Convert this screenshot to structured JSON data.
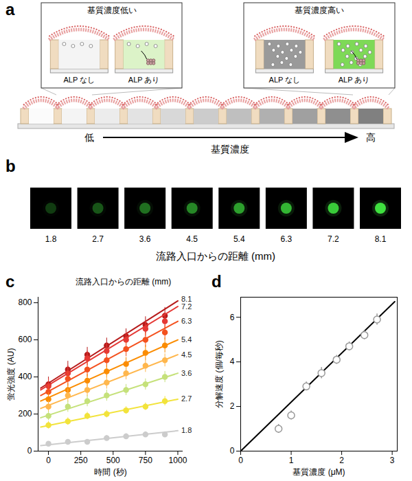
{
  "chart_data": [
    {
      "type": "line",
      "title": "c",
      "annotations": [
        "流路入口からの距離 (mm)"
      ],
      "xlabel": "時間 (秒)",
      "ylabel": "蛍光強度 (AU)",
      "x": [
        0,
        150,
        300,
        450,
        600,
        750,
        900
      ],
      "xlim": [
        -80,
        1040
      ],
      "xticks": [
        0,
        250,
        500,
        750,
        1000
      ],
      "ylim": [
        0,
        830
      ],
      "yticks": [
        0,
        200,
        400,
        600,
        800
      ],
      "marker": "circle",
      "fit_x": [
        -60,
        1000
      ],
      "series": [
        {
          "name": "8.1",
          "color": "#b71c1c",
          "values": [
            360,
            440,
            520,
            570,
            620,
            680,
            730
          ],
          "errors": [
            40,
            45,
            40,
            40,
            40,
            45,
            45
          ],
          "fit": [
            340,
            810
          ]
        },
        {
          "name": "7.2",
          "color": "#e53935",
          "values": [
            350,
            420,
            500,
            540,
            600,
            660,
            700
          ],
          "errors": [
            40,
            40,
            40,
            40,
            40,
            40,
            45
          ],
          "fit": [
            330,
            780
          ]
        },
        {
          "name": "6.3",
          "color": "#f4511e",
          "values": [
            320,
            390,
            440,
            490,
            550,
            600,
            640
          ],
          "errors": [
            35,
            40,
            40,
            40,
            40,
            40,
            40
          ],
          "fit": [
            300,
            700
          ]
        },
        {
          "name": "5.4",
          "color": "#fb8c00",
          "values": [
            280,
            330,
            380,
            430,
            470,
            530,
            570
          ],
          "errors": [
            35,
            35,
            35,
            35,
            35,
            40,
            40
          ],
          "fit": [
            270,
            600
          ]
        },
        {
          "name": "4.5",
          "color": "#ffb74d",
          "values": [
            240,
            300,
            330,
            370,
            420,
            460,
            490
          ],
          "errors": [
            30,
            35,
            35,
            35,
            35,
            35,
            35
          ],
          "fit": [
            230,
            520
          ]
        },
        {
          "name": "3.6",
          "color": "#c5e17a",
          "values": [
            190,
            240,
            270,
            300,
            330,
            360,
            400
          ],
          "errors": [
            25,
            30,
            30,
            30,
            30,
            30,
            30
          ],
          "fit": [
            180,
            420
          ]
        },
        {
          "name": "2.7",
          "color": "#f2e33b",
          "values": [
            140,
            160,
            190,
            200,
            220,
            240,
            270
          ],
          "errors": [
            20,
            20,
            20,
            20,
            20,
            20,
            25
          ],
          "fit": [
            130,
            280
          ]
        },
        {
          "name": "1.8",
          "color": "#cccccc",
          "values": [
            40,
            50,
            50,
            70,
            80,
            90,
            90
          ],
          "errors": [
            10,
            10,
            10,
            15,
            15,
            15,
            15
          ],
          "fit": [
            30,
            110
          ]
        }
      ]
    },
    {
      "type": "scatter",
      "title": "d",
      "xlabel": "基質濃度 (μM)",
      "ylabel": "分解速度 (個/毎秒)",
      "x": [
        0.75,
        1.0,
        1.3,
        1.6,
        1.9,
        2.15,
        2.45,
        2.7
      ],
      "values": [
        1.0,
        1.6,
        2.9,
        3.5,
        4.1,
        4.7,
        5.2,
        5.9
      ],
      "errors": [
        0.2,
        0.2,
        0.2,
        0.25,
        0.2,
        0.2,
        0.2,
        0.25
      ],
      "color": "#999999",
      "marker": "open circle",
      "fit_x": [
        0,
        3.05
      ],
      "fit": [
        0,
        6.7
      ],
      "xlim": [
        0,
        3.1
      ],
      "xticks": [
        0,
        1,
        2,
        3
      ],
      "ylim": [
        0,
        6.9
      ],
      "yticks": [
        0,
        2,
        4,
        6
      ]
    }
  ],
  "diagram": {
    "title": "a",
    "insets": [
      {
        "title": "基質濃度低い",
        "wells": [
          "ALP なし",
          "ALP あり"
        ]
      },
      {
        "title": "基質濃度高い",
        "wells": [
          "ALP なし",
          "ALP あり"
        ]
      }
    ],
    "axis": {
      "label": "基質濃度",
      "low": "低",
      "high": "高"
    }
  },
  "images": {
    "title": "b",
    "distances": [
      1.8,
      2.7,
      3.6,
      4.5,
      5.4,
      6.3,
      7.2,
      8.1
    ],
    "xlabel": "流路入口からの距離 (mm)"
  }
}
